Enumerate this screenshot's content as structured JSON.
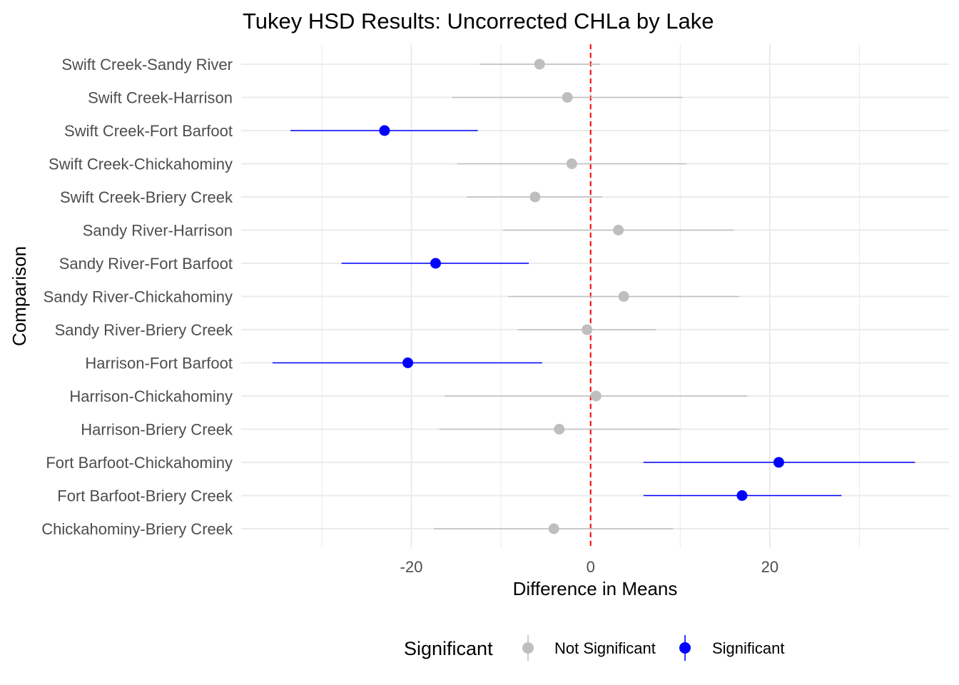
{
  "chart_data": {
    "type": "scatter",
    "title": "Tukey HSD Results: Uncorrected CHLa by Lake",
    "xlabel": "Difference in Means",
    "ylabel": "Comparison",
    "xlim": [
      -39,
      40
    ],
    "x_ticks": [
      -20,
      0,
      20
    ],
    "x_tick_labels": [
      "-20",
      "0",
      "20"
    ],
    "reference_line": {
      "x": 0,
      "color": "#ff0000",
      "style": "dashed"
    },
    "grid": true,
    "legend": {
      "title": "Significant",
      "position": "bottom",
      "entries": [
        {
          "label": "Not Significant",
          "color": "#bebebe"
        },
        {
          "label": "Significant",
          "color": "#0000ff"
        }
      ]
    },
    "comparisons": [
      {
        "label": "Swift Creek-Sandy River",
        "diff": -5.7,
        "lwr": -12.4,
        "upr": 1.0,
        "significant": false
      },
      {
        "label": "Swift Creek-Harrison",
        "diff": -2.6,
        "lwr": -15.5,
        "upr": 10.2,
        "significant": false
      },
      {
        "label": "Swift Creek-Fort Barfoot",
        "diff": -23.0,
        "lwr": -33.5,
        "upr": -12.6,
        "significant": true
      },
      {
        "label": "Swift Creek-Chickahominy",
        "diff": -2.1,
        "lwr": -14.9,
        "upr": 10.7,
        "significant": false
      },
      {
        "label": "Swift Creek-Briery Creek",
        "diff": -6.2,
        "lwr": -13.8,
        "upr": 1.3,
        "significant": false
      },
      {
        "label": "Sandy River-Harrison",
        "diff": 3.1,
        "lwr": -9.8,
        "upr": 16.0,
        "significant": false
      },
      {
        "label": "Sandy River-Fort Barfoot",
        "diff": -17.3,
        "lwr": -27.8,
        "upr": -6.9,
        "significant": true
      },
      {
        "label": "Sandy River-Chickahominy",
        "diff": 3.7,
        "lwr": -9.2,
        "upr": 16.6,
        "significant": false
      },
      {
        "label": "Sandy River-Briery Creek",
        "diff": -0.4,
        "lwr": -8.1,
        "upr": 7.3,
        "significant": false
      },
      {
        "label": "Harrison-Fort Barfoot",
        "diff": -20.4,
        "lwr": -35.5,
        "upr": -5.4,
        "significant": true
      },
      {
        "label": "Harrison-Chickahominy",
        "diff": 0.6,
        "lwr": -16.3,
        "upr": 17.5,
        "significant": false
      },
      {
        "label": "Harrison-Briery Creek",
        "diff": -3.5,
        "lwr": -16.9,
        "upr": 9.9,
        "significant": false
      },
      {
        "label": "Fort Barfoot-Chickahominy",
        "diff": 21.0,
        "lwr": 5.9,
        "upr": 36.2,
        "significant": true
      },
      {
        "label": "Fort Barfoot-Briery Creek",
        "diff": 16.9,
        "lwr": 5.9,
        "upr": 28.0,
        "significant": true
      },
      {
        "label": "Chickahominy-Briery Creek",
        "diff": -4.1,
        "lwr": -17.5,
        "upr": 9.2,
        "significant": false
      }
    ]
  }
}
